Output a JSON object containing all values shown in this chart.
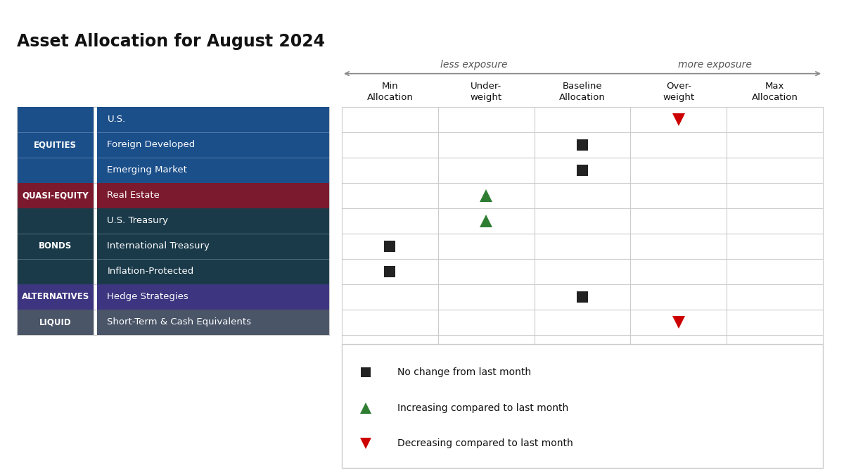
{
  "title": "Asset Allocation for August 2024",
  "col_headers": [
    "Min\nAllocation",
    "Under-\nweight",
    "Baseline\nAllocation",
    "Over-\nweight",
    "Max\nAllocation"
  ],
  "row_groups": [
    {
      "label": "EQUITIES",
      "color": "#1B4F8A",
      "rows": [
        "U.S.",
        "Foreign Developed",
        "Emerging Market"
      ]
    },
    {
      "label": "QUASI-EQUITY",
      "color": "#7B1A2E",
      "rows": [
        "Real Estate"
      ]
    },
    {
      "label": "BONDS",
      "color": "#1A3A4A",
      "rows": [
        "U.S. Treasury",
        "International Treasury",
        "Inflation-Protected"
      ]
    },
    {
      "label": "ALTERNATIVES",
      "color": "#3D3580",
      "rows": [
        "Hedge Strategies"
      ]
    },
    {
      "label": "LIQUID",
      "color": "#4A5568",
      "rows": [
        "Short-Term & Cash Equivalents"
      ]
    }
  ],
  "markers": [
    {
      "row": 0,
      "col": 3,
      "type": "down_triangle",
      "color": "#CC0000"
    },
    {
      "row": 1,
      "col": 2,
      "type": "square",
      "color": "#222222"
    },
    {
      "row": 2,
      "col": 2,
      "type": "square",
      "color": "#222222"
    },
    {
      "row": 3,
      "col": 1,
      "type": "up_triangle",
      "color": "#2E7D32"
    },
    {
      "row": 4,
      "col": 1,
      "type": "up_triangle",
      "color": "#2E7D32"
    },
    {
      "row": 5,
      "col": 0,
      "type": "square",
      "color": "#222222"
    },
    {
      "row": 6,
      "col": 0,
      "type": "square",
      "color": "#222222"
    },
    {
      "row": 7,
      "col": 2,
      "type": "square",
      "color": "#222222"
    },
    {
      "row": 8,
      "col": 3,
      "type": "down_triangle",
      "color": "#CC0000"
    }
  ],
  "legend": [
    {
      "type": "square",
      "color": "#222222",
      "label": "No change from last month"
    },
    {
      "type": "up_triangle",
      "color": "#2E7D32",
      "label": "Increasing compared to last month"
    },
    {
      "type": "down_triangle",
      "color": "#CC0000",
      "label": "Decreasing compared to last month"
    }
  ],
  "grid_color": "#CCCCCC",
  "background_color": "#FFFFFF",
  "less_exposure_label": "less exposure",
  "more_exposure_label": "more exposure"
}
